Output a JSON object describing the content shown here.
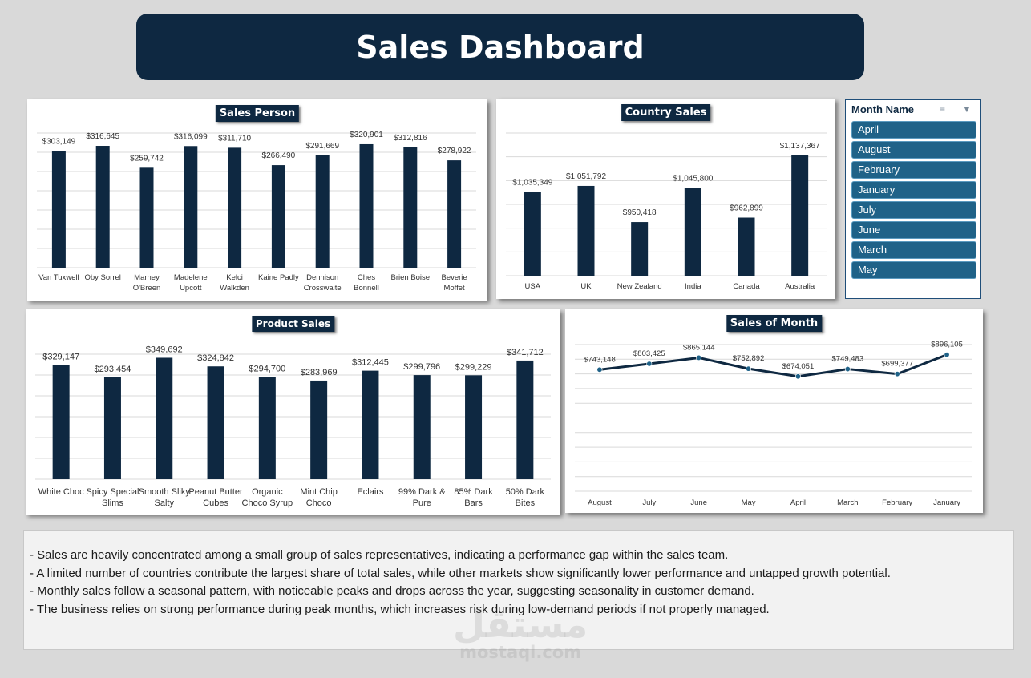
{
  "header": {
    "title": "Sales Dashboard"
  },
  "colors": {
    "bar": "#0e2841",
    "line": "#0e2841",
    "point": "#1f6288",
    "grid": "#d9d9d9"
  },
  "chart_data": [
    {
      "id": "sales-person",
      "type": "bar",
      "title": "Sales Person",
      "categories": [
        [
          "Van Tuxwell"
        ],
        [
          "Oby Sorrel"
        ],
        [
          "Marney",
          "O'Breen"
        ],
        [
          "Madelene",
          "Upcott"
        ],
        [
          "Kelci",
          "Walkden"
        ],
        [
          "Kaine Padly"
        ],
        [
          "Dennison",
          "Crosswaite"
        ],
        [
          "Ches",
          "Bonnell"
        ],
        [
          "Brien Boise"
        ],
        [
          "Beverie",
          "Moffet"
        ]
      ],
      "values": [
        303149,
        316645,
        259742,
        316099,
        311710,
        266490,
        291669,
        320901,
        312816,
        278922
      ],
      "labels": [
        "$303,149",
        "$316,645",
        "$259,742",
        "$316,099",
        "$311,710",
        "$266,490",
        "$291,669",
        "$320,901",
        "$312,816",
        "$278,922"
      ],
      "ylim": [
        0,
        350000
      ],
      "grid": true
    },
    {
      "id": "country-sales",
      "type": "bar",
      "title": "Country Sales",
      "categories": [
        [
          "USA"
        ],
        [
          "UK"
        ],
        [
          "New Zealand"
        ],
        [
          "India"
        ],
        [
          "Canada"
        ],
        [
          "Australia"
        ]
      ],
      "values": [
        1035349,
        1051792,
        950418,
        1045800,
        962899,
        1137367
      ],
      "labels": [
        "$1,035,349",
        "$1,051,792",
        "$950,418",
        "$1,045,800",
        "$962,899",
        "$1,137,367"
      ],
      "ylim": [
        800000,
        1200000
      ],
      "grid": true
    },
    {
      "id": "product-sales",
      "type": "bar",
      "title": "Product Sales",
      "categories": [
        [
          "White Choc"
        ],
        [
          "Spicy Special",
          "Slims"
        ],
        [
          "Smooth Sliky",
          "Salty"
        ],
        [
          "Peanut Butter",
          "Cubes"
        ],
        [
          "Organic",
          "Choco Syrup"
        ],
        [
          "Mint Chip",
          "Choco"
        ],
        [
          "Eclairs"
        ],
        [
          "99% Dark &",
          "Pure"
        ],
        [
          "85% Dark",
          "Bars"
        ],
        [
          "50% Dark",
          "Bites"
        ]
      ],
      "values": [
        329147,
        293454,
        349692,
        324842,
        294700,
        283969,
        312445,
        299796,
        299229,
        341712
      ],
      "labels": [
        "$329,147",
        "$293,454",
        "$349,692",
        "$324,842",
        "$294,700",
        "$283,969",
        "$312,445",
        "$299,796",
        "$299,229",
        "$341,712"
      ],
      "ylim": [
        0,
        360000
      ],
      "grid": true
    },
    {
      "id": "sales-of-month",
      "type": "line",
      "title": "Sales of Month",
      "categories": [
        [
          "August"
        ],
        [
          "July"
        ],
        [
          "June"
        ],
        [
          "May"
        ],
        [
          "April"
        ],
        [
          "March"
        ],
        [
          "February"
        ],
        [
          "January"
        ]
      ],
      "values": [
        743148,
        803425,
        865144,
        752892,
        674051,
        749483,
        699377,
        896105
      ],
      "labels": [
        "$743,148",
        "$803,425",
        "$865,144",
        "$752,892",
        "$674,051",
        "$749,483",
        "$699,377",
        "$896,105"
      ],
      "ylim": [
        -500000,
        1000000
      ],
      "grid": true
    }
  ],
  "slicer": {
    "title": "Month Name",
    "items": [
      "April",
      "August",
      "February",
      "January",
      "July",
      "June",
      "March",
      "May"
    ]
  },
  "notes": [
    "- Sales are heavily concentrated among a small group of sales representatives, indicating a performance gap within the sales team.",
    "- A limited number of countries contribute the largest share of total sales, while other markets show significantly lower performance and untapped growth potential.",
    "- Monthly sales follow a seasonal pattern, with noticeable peaks and drops across the year, suggesting seasonality in customer demand.",
    "- The business relies on strong performance during peak months, which increases risk during low-demand periods if not properly managed."
  ],
  "watermark": {
    "arabic": "مستقل",
    "latin": "mostaql.com"
  }
}
